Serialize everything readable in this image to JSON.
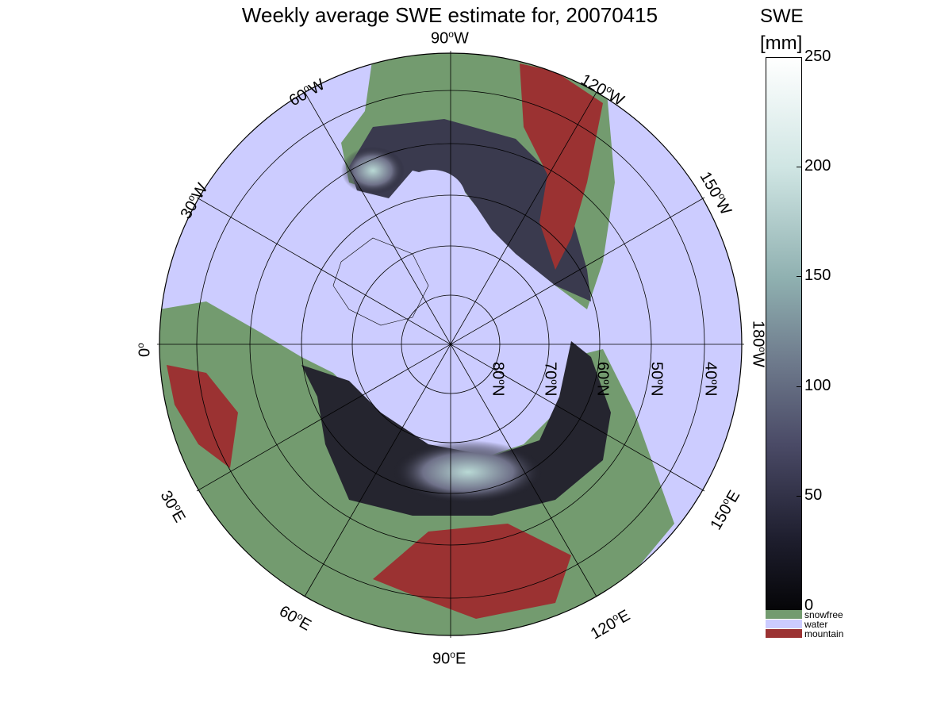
{
  "title": "Weekly average SWE estimate for, 20070415",
  "colorbar": {
    "title": "SWE",
    "unit": "[mm]",
    "ticks": [
      "250",
      "200",
      "150",
      "100",
      "50",
      "0"
    ]
  },
  "legend": [
    {
      "label": "snowfree",
      "color": "#739b6f"
    },
    {
      "label": "water",
      "color": "#ccccff"
    },
    {
      "label": "mountain",
      "color": "#9b3232"
    }
  ],
  "longitude_labels": {
    "top": "90",
    "top_suffix": "W",
    "w60": "60",
    "w120": "120",
    "w30": "30",
    "w150": "150",
    "zero": "0",
    "w180": "180",
    "e30": "30",
    "e150": "150",
    "e60": "60",
    "e120": "120",
    "bottom": "90",
    "e_suffix": "E"
  },
  "latitude_labels": [
    "80",
    "70",
    "60",
    "50",
    "40"
  ],
  "lat_suffix": "N",
  "colors": {
    "water": "#ccccff",
    "land": "#739b6f",
    "mountain": "#9b3232",
    "snow_dark": "#1a1a24",
    "snow_light": "#b8d8d4"
  }
}
